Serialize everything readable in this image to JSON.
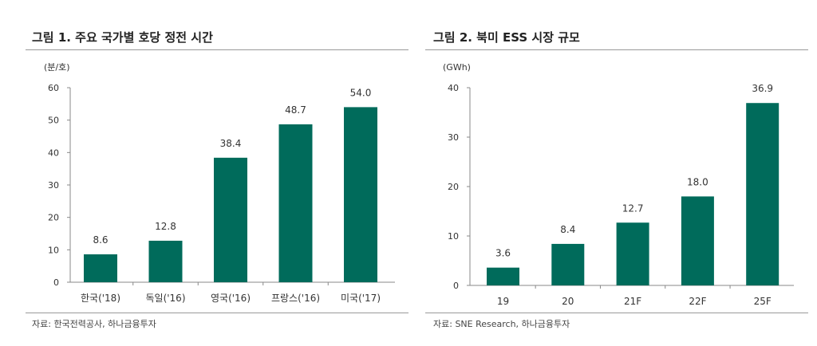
{
  "chart_data": [
    {
      "type": "bar",
      "title": "그림 1. 주요 국가별 호당 정전 시간",
      "ylabel": "(분/호)",
      "xlabel": "",
      "categories": [
        "한국('18)",
        "독일('16)",
        "영국('16)",
        "프랑스('16)",
        "미국('17)"
      ],
      "values": [
        8.6,
        12.8,
        38.4,
        48.7,
        54.0
      ],
      "value_labels": [
        "8.6",
        "12.8",
        "38.4",
        "48.7",
        "54.0"
      ],
      "ylim": [
        0,
        60
      ],
      "yticks": [
        0,
        10,
        20,
        30,
        40,
        50,
        60
      ],
      "grid": false,
      "bar_color": "#006b5b",
      "source": "자료: 한국전력공사, 하나금융투자"
    },
    {
      "type": "bar",
      "title": "그림 2. 북미 ESS 시장 규모",
      "ylabel": "(GWh)",
      "xlabel": "",
      "categories": [
        "19",
        "20",
        "21F",
        "22F",
        "25F"
      ],
      "values": [
        3.6,
        8.4,
        12.7,
        18.0,
        36.9
      ],
      "value_labels": [
        "3.6",
        "8.4",
        "12.7",
        "18.0",
        "36.9"
      ],
      "ylim": [
        0,
        40
      ],
      "yticks": [
        0,
        10,
        20,
        30,
        40
      ],
      "grid": false,
      "bar_color": "#006b5b",
      "source": "자료: SNE Research, 하나금융투자"
    }
  ]
}
